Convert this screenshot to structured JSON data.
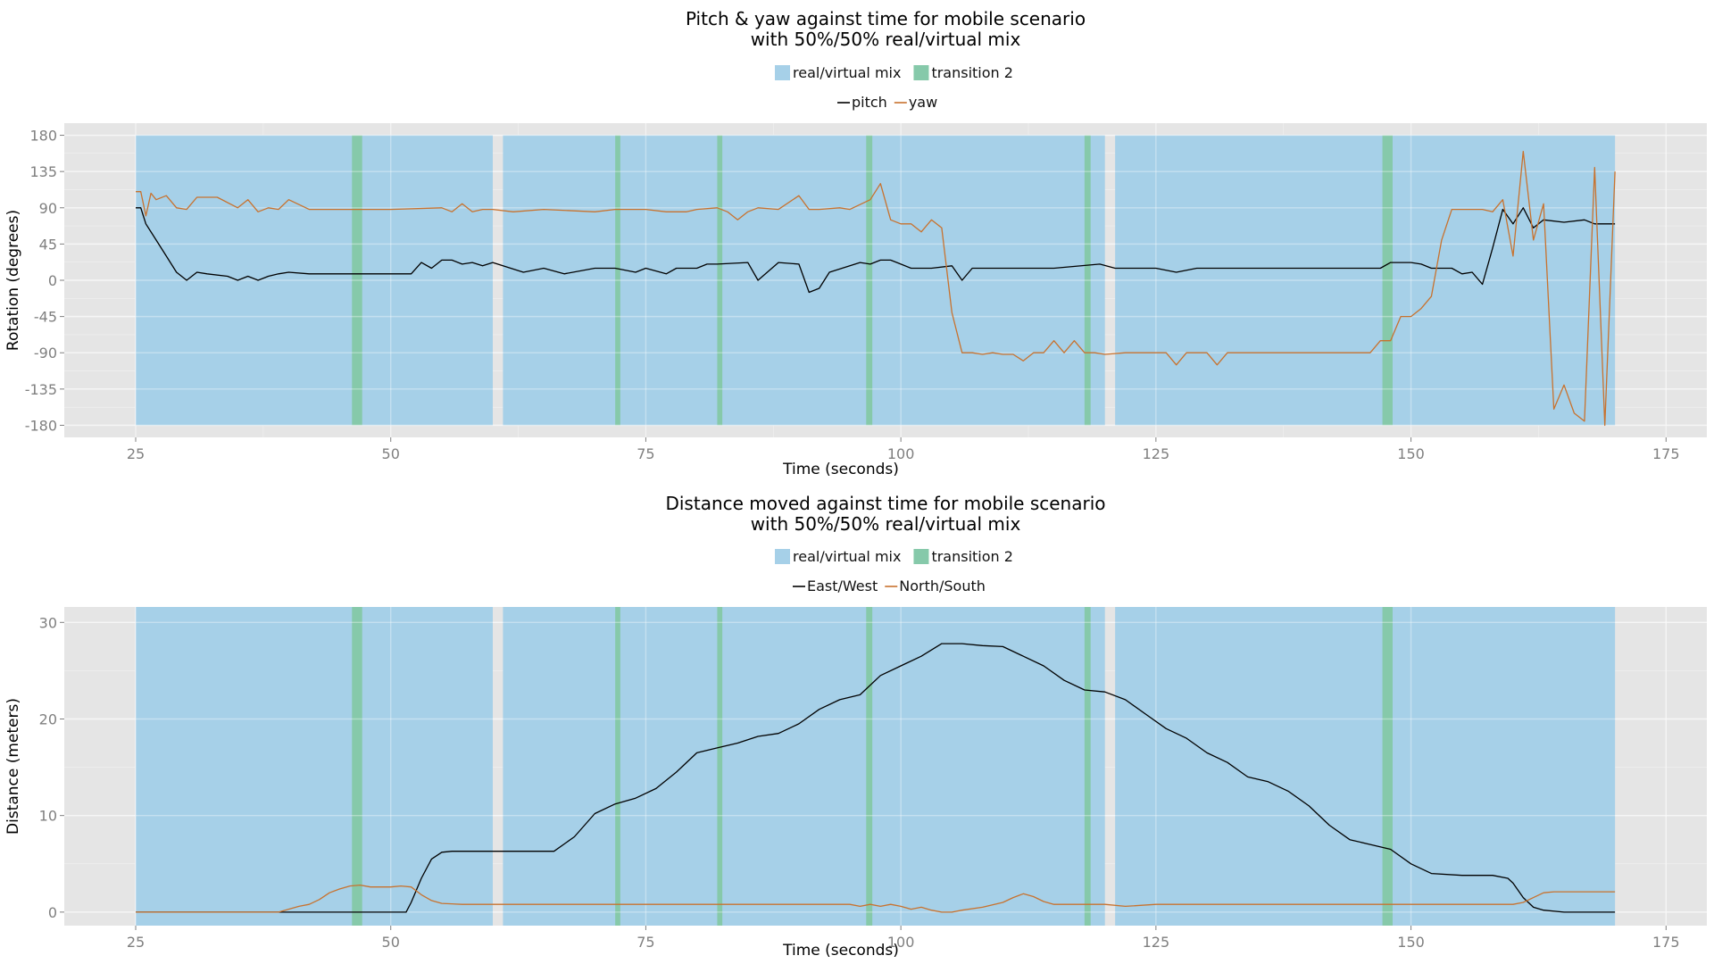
{
  "chart_data": [
    {
      "type": "line",
      "title_lines": [
        "Pitch & yaw against time for mobile scenario",
        "with 50%/50% real/virtual mix"
      ],
      "xlabel": "Time (seconds)",
      "ylabel": "Rotation (degrees)",
      "xlim": [
        18,
        179
      ],
      "ylim": [
        -195,
        195
      ],
      "xticks": [
        25,
        50,
        75,
        100,
        125,
        150,
        175
      ],
      "yticks": [
        180,
        135,
        90,
        45,
        0,
        -45,
        -90,
        -135,
        -180
      ],
      "fill_legend": [
        "real/virtual mix",
        "transition 2"
      ],
      "line_legend": [
        "pitch",
        "yaw"
      ],
      "regions": {
        "real_virtual_mix": [
          [
            25,
            60
          ],
          [
            61,
            120
          ],
          [
            121,
            170
          ]
        ],
        "transition_2": [
          [
            46.2,
            47.2
          ],
          [
            72,
            72.5
          ],
          [
            82,
            82.5
          ],
          [
            96.6,
            97.2
          ],
          [
            118,
            118.6
          ],
          [
            147.2,
            148.2
          ]
        ],
        "y_range": [
          -180,
          180
        ]
      },
      "series": [
        {
          "name": "pitch",
          "color": "#000000",
          "x": [
            25,
            25.5,
            26,
            27,
            28,
            29,
            30,
            31,
            32,
            34,
            35,
            36,
            37,
            38,
            39,
            40,
            42,
            45,
            52,
            53,
            54,
            55,
            56,
            57,
            58,
            59,
            60,
            61,
            63,
            65,
            67,
            70,
            72,
            74,
            75,
            77,
            78,
            80,
            81,
            82,
            85,
            86,
            88,
            90,
            91,
            92,
            93,
            95,
            96,
            97,
            98,
            99,
            100,
            101,
            103,
            105,
            106,
            107,
            110,
            115,
            119.5,
            121,
            125,
            127,
            129,
            135,
            140,
            147,
            148,
            150,
            151,
            152,
            154,
            155,
            156,
            157,
            158,
            159,
            160,
            161,
            162,
            163,
            165,
            167,
            168,
            170
          ],
          "values": [
            90,
            90,
            70,
            50,
            30,
            10,
            0,
            10,
            8,
            5,
            0,
            5,
            0,
            5,
            8,
            10,
            8,
            8,
            8,
            22,
            15,
            25,
            25,
            20,
            22,
            18,
            22,
            18,
            10,
            15,
            8,
            15,
            15,
            10,
            15,
            8,
            15,
            15,
            20,
            20,
            22,
            0,
            22,
            20,
            -15,
            -10,
            10,
            18,
            22,
            20,
            25,
            25,
            20,
            15,
            15,
            18,
            0,
            15,
            15,
            15,
            20,
            15,
            15,
            10,
            15,
            15,
            15,
            15,
            22,
            22,
            20,
            15,
            15,
            8,
            10,
            -5,
            40,
            88,
            70,
            90,
            65,
            75,
            72,
            75,
            70,
            70
          ]
        },
        {
          "name": "yaw",
          "color": "#c8722e",
          "x": [
            25,
            25.5,
            26,
            26.5,
            27,
            28,
            29,
            30,
            31,
            32,
            33,
            35,
            36,
            37,
            38,
            39,
            40,
            42,
            43,
            45,
            50,
            55,
            56,
            57,
            58,
            59,
            60,
            62,
            65,
            70,
            72,
            75,
            77,
            79,
            80,
            82,
            83,
            84,
            85,
            86,
            88,
            90,
            91,
            92,
            94,
            95,
            97,
            98,
            99,
            100,
            101,
            102,
            103,
            104,
            105,
            106,
            107,
            108,
            109,
            110,
            111,
            112,
            113,
            114,
            115,
            116,
            117,
            118,
            119,
            120,
            122,
            124,
            125,
            126,
            127,
            128,
            130,
            131,
            132,
            133,
            134,
            135,
            140,
            146,
            147,
            148,
            149,
            150,
            151,
            152,
            153,
            154,
            155,
            156,
            157,
            158,
            159,
            160,
            161,
            162,
            163,
            164,
            165,
            166,
            167,
            168,
            169,
            170
          ],
          "values": [
            110,
            110,
            80,
            108,
            100,
            105,
            90,
            88,
            103,
            103,
            103,
            90,
            100,
            85,
            90,
            88,
            100,
            88,
            88,
            88,
            88,
            90,
            85,
            95,
            85,
            88,
            88,
            85,
            88,
            85,
            88,
            88,
            85,
            85,
            88,
            90,
            85,
            75,
            85,
            90,
            88,
            105,
            88,
            88,
            90,
            88,
            100,
            120,
            75,
            70,
            70,
            60,
            75,
            65,
            -40,
            -90,
            -90,
            -92,
            -90,
            -92,
            -92,
            -100,
            -90,
            -90,
            -75,
            -90,
            -75,
            -90,
            -90,
            -92,
            -90,
            -90,
            -90,
            -90,
            -105,
            -90,
            -90,
            -105,
            -90,
            -90,
            -90,
            -90,
            -90,
            -90,
            -75,
            -75,
            -45,
            -45,
            -35,
            -20,
            50,
            88,
            88,
            88,
            88,
            85,
            100,
            30,
            160,
            50,
            95,
            -160,
            -130,
            -165,
            -175,
            140,
            -180,
            135
          ]
        }
      ]
    },
    {
      "type": "line",
      "title_lines": [
        "Distance moved against time for mobile scenario",
        "with 50%/50% real/virtual mix"
      ],
      "xlabel": "Time (seconds)",
      "ylabel": "Distance (meters)",
      "xlim": [
        18,
        179
      ],
      "ylim": [
        -1.4,
        31.6
      ],
      "xticks": [
        25,
        50,
        75,
        100,
        125,
        150,
        175
      ],
      "yticks": [
        30,
        20,
        10,
        0
      ],
      "fill_legend": [
        "real/virtual mix",
        "transition 2"
      ],
      "line_legend": [
        "East/West",
        "North/South"
      ],
      "regions": {
        "real_virtual_mix": [
          [
            25,
            60
          ],
          [
            61,
            120
          ],
          [
            121,
            170
          ]
        ],
        "transition_2": [
          [
            46.2,
            47.2
          ],
          [
            72,
            72.5
          ],
          [
            82,
            82.5
          ],
          [
            96.6,
            97.2
          ],
          [
            118,
            118.6
          ],
          [
            147.2,
            148.2
          ]
        ],
        "y_range": [
          -1.4,
          31.6
        ]
      },
      "series": [
        {
          "name": "East/West",
          "color": "#000000",
          "x": [
            25,
            51.5,
            52,
            53,
            54,
            55,
            56,
            58,
            60,
            62,
            64,
            66,
            68,
            70,
            72,
            74,
            76,
            78,
            80,
            82,
            84,
            86,
            88,
            90,
            92,
            94,
            96,
            98,
            100,
            102,
            104,
            106,
            108,
            110,
            112,
            114,
            116,
            118,
            120,
            122,
            124,
            126,
            128,
            130,
            132,
            134,
            136,
            138,
            140,
            142,
            144,
            146,
            148,
            150,
            152,
            155,
            158,
            159.5,
            160,
            161,
            162,
            163,
            165,
            170
          ],
          "values": [
            0,
            0,
            1,
            3.5,
            5.5,
            6.2,
            6.3,
            6.3,
            6.3,
            6.3,
            6.3,
            6.3,
            7.8,
            10.2,
            11.2,
            11.8,
            12.8,
            14.5,
            16.5,
            17,
            17.5,
            18.2,
            18.5,
            19.5,
            21,
            22,
            22.5,
            24.5,
            25.5,
            26.5,
            27.8,
            27.8,
            27.6,
            27.5,
            26.5,
            25.5,
            24,
            23,
            22.8,
            22,
            20.5,
            19,
            18,
            16.5,
            15.5,
            14,
            13.5,
            12.5,
            11,
            9,
            7.5,
            7,
            6.5,
            5,
            4,
            3.8,
            3.8,
            3.5,
            3,
            1.5,
            0.5,
            0.2,
            0,
            0
          ]
        },
        {
          "name": "North/South",
          "color": "#c8722e",
          "x": [
            25,
            39,
            40,
            41,
            42,
            43,
            44,
            45,
            46,
            47,
            48,
            50,
            51,
            52,
            53,
            54,
            55,
            57,
            60,
            70,
            80,
            90,
            95,
            96,
            97,
            98,
            99,
            100,
            101,
            102,
            103,
            104,
            105,
            106,
            108,
            110,
            111,
            112,
            113,
            114,
            115,
            116,
            118,
            120,
            122,
            125,
            130,
            140,
            150,
            160,
            161,
            162,
            163,
            164,
            165,
            170
          ],
          "values": [
            0,
            0,
            0.3,
            0.6,
            0.8,
            1.3,
            2,
            2.4,
            2.7,
            2.8,
            2.6,
            2.6,
            2.7,
            2.6,
            1.8,
            1.2,
            0.9,
            0.8,
            0.8,
            0.8,
            0.8,
            0.8,
            0.8,
            0.6,
            0.8,
            0.6,
            0.8,
            0.6,
            0.3,
            0.5,
            0.2,
            0,
            0,
            0.2,
            0.5,
            1,
            1.5,
            1.9,
            1.6,
            1.1,
            0.8,
            0.8,
            0.8,
            0.8,
            0.6,
            0.8,
            0.8,
            0.8,
            0.8,
            0.8,
            1,
            1.5,
            2,
            2.1,
            2.1,
            2.1
          ]
        }
      ]
    }
  ],
  "colors": {
    "panel_bg": "#e5e5e5",
    "grid": "#f2f2f2",
    "real_virtual_mix_fill": "#a6d0e8",
    "transition_2_fill": "#86c9aa"
  }
}
